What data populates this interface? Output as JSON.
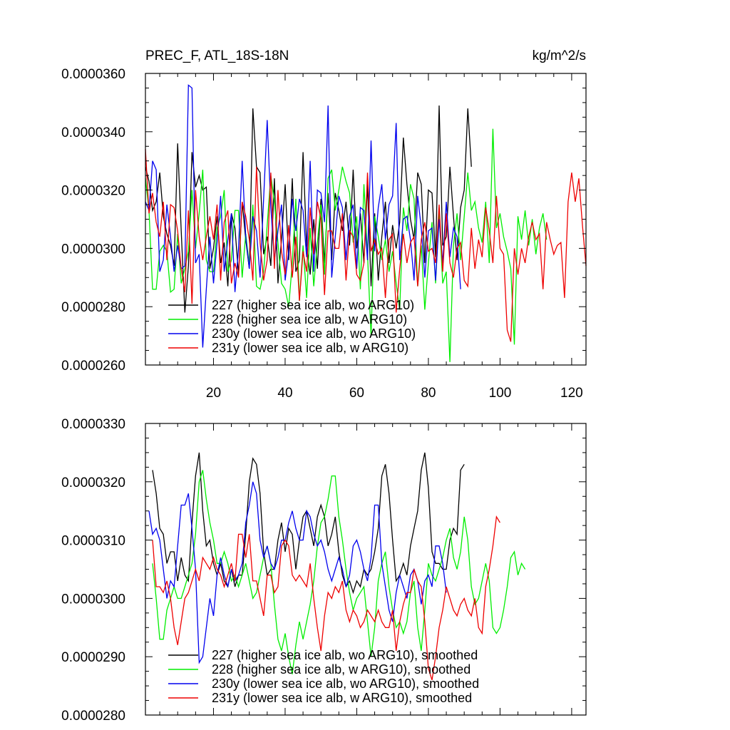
{
  "chart_data": [
    {
      "type": "line",
      "title": "PREC_F, ATL_18S-18N",
      "units": "kg/m^2/s",
      "xlim": [
        1,
        124
      ],
      "ylim": [
        2.6e-05,
        3.6e-05
      ],
      "x_ticks": [
        20,
        40,
        60,
        80,
        100,
        120
      ],
      "y_ticks": [
        "0.0000260",
        "0.0000280",
        "0.0000300",
        "0.0000320",
        "0.0000340",
        "0.0000360"
      ],
      "y_tick_values": [
        2.6e-05,
        2.8e-05,
        3e-05,
        3.2e-05,
        3.4e-05,
        3.6e-05
      ],
      "legend_position": "bottom-left",
      "series": [
        {
          "name": "227 (higher sea ice alb, wo ARG10)",
          "color": "#000000",
          "x_start": 1,
          "values": [
            3.28e-05,
            3.23e-05,
            3.13e-05,
            3.16e-05,
            3.26e-05,
            3.11e-05,
            3.05e-05,
            3.01e-05,
            2.94e-05,
            3.36e-05,
            3.06e-05,
            2.78e-05,
            2.94e-05,
            3.33e-05,
            3.21e-05,
            3.25e-05,
            3.2e-05,
            3.21e-05,
            2.93e-05,
            3e-05,
            3.11e-05,
            2.95e-05,
            3.02e-05,
            2.87e-05,
            3.12e-05,
            3.07e-05,
            2.91e-05,
            3.16e-05,
            3.03e-05,
            2.93e-05,
            3.48e-05,
            3.28e-05,
            3.26e-05,
            2.98e-05,
            3.04e-05,
            2.94e-05,
            3.24e-05,
            2.88e-05,
            3.03e-05,
            3.22e-05,
            2.96e-05,
            3.24e-05,
            2.92e-05,
            2.96e-05,
            3.33e-05,
            3.01e-05,
            2.91e-05,
            3.1e-05,
            2.93e-05,
            3.17e-05,
            2.95e-05,
            3.19e-05,
            2.96e-05,
            3.19e-05,
            3.13e-05,
            3.06e-05,
            3.16e-05,
            3.01e-05,
            3.27e-05,
            3e-05,
            3.12e-05,
            2.95e-05,
            3.22e-05,
            2.87e-05,
            3.12e-05,
            2.89e-05,
            3.04e-05,
            3.16e-05,
            2.95e-05,
            3.08e-05,
            3e-05,
            3.09e-05,
            3.38e-05,
            3.22e-05,
            3.1e-05,
            3.03e-05,
            3.26e-05,
            3.22e-05,
            2.95e-05,
            3.2e-05,
            3.19e-05,
            2.97e-05,
            3.49e-05,
            3.01e-05,
            3.04e-05,
            3.28e-05,
            3.11e-05,
            2.96e-05,
            3.14e-05,
            3.2e-05,
            3.48e-05,
            3.28e-05
          ]
        },
        {
          "name": "228 (higher sea ice alb, w ARG10)",
          "color": "#00ee00",
          "x_start": 1,
          "values": [
            3.24e-05,
            3.13e-05,
            2.86e-05,
            2.86e-05,
            2.99e-05,
            3.01e-05,
            2.99e-05,
            2.85e-05,
            2.86e-05,
            3.05e-05,
            2.88e-05,
            2.93e-05,
            2.99e-05,
            3.2e-05,
            3e-05,
            3.12e-05,
            3.27e-05,
            2.96e-05,
            2.92e-05,
            2.92e-05,
            3.07e-05,
            3.11e-05,
            3.2e-05,
            2.92e-05,
            2.96e-05,
            3.13e-05,
            3.13e-05,
            2.9e-05,
            3.05e-05,
            2.94e-05,
            3.15e-05,
            2.87e-05,
            2.86e-05,
            2.92e-05,
            3.08e-05,
            3.25e-05,
            3.16e-05,
            3.02e-05,
            2.88e-05,
            2.86e-05,
            2.8e-05,
            2.95e-05,
            3.17e-05,
            2.82e-05,
            3.01e-05,
            2.83e-05,
            3.07e-05,
            2.87e-05,
            3.02e-05,
            3.15e-05,
            2.91e-05,
            3.24e-05,
            3.27e-05,
            3.13e-05,
            3.2e-05,
            3.28e-05,
            3.23e-05,
            3.19e-05,
            3.02e-05,
            3.11e-05,
            2.86e-05,
            3.22e-05,
            2.98e-05,
            2.7e-05,
            3.11e-05,
            3.04e-05,
            2.96e-05,
            3.03e-05,
            2.92e-05,
            2.99e-05,
            2.88e-05,
            2.79e-05,
            3.14e-05,
            3.06e-05,
            3.22e-05,
            3.17e-05,
            2.87e-05,
            3.01e-05,
            2.79e-05,
            2.95e-05,
            3.09e-05,
            2.88e-05,
            3.12e-05,
            2.88e-05,
            2.92e-05,
            2.61e-05,
            3.01e-05,
            3.12e-05,
            2.96e-05,
            3.11e-05,
            3.26e-05,
            3.13e-05,
            3.16e-05,
            3.07e-05,
            3.02e-05,
            3.16e-05,
            2.95e-05,
            3.41e-05,
            3.07e-05,
            3.12e-05,
            3.04e-05,
            2.99e-05,
            2.93e-05,
            2.67e-05,
            3.11e-05,
            3.03e-05,
            3.13e-05,
            3.01e-05,
            3.1e-05,
            2.98e-05,
            3.07e-05,
            3.12e-05,
            3.03e-05
          ]
        },
        {
          "name": "230y (lower sea ice alb, wo ARG10)",
          "color": "#0000ee",
          "x_start": 1,
          "values": [
            3.16e-05,
            3.13e-05,
            3.3e-05,
            3.27e-05,
            2.92e-05,
            2.96e-05,
            3.15e-05,
            3.04e-05,
            2.92e-05,
            3.01e-05,
            2.93e-05,
            2.94e-05,
            3.56e-05,
            3.55e-05,
            2.95e-05,
            2.98e-05,
            2.66e-05,
            2.86e-05,
            3.04e-05,
            2.88e-05,
            3.02e-05,
            3.18e-05,
            2.92e-05,
            3.03e-05,
            3.12e-05,
            2.85e-05,
            3e-05,
            3.3e-05,
            3.04e-05,
            2.93e-05,
            3.11e-05,
            3.06e-05,
            2.9e-05,
            3.17e-05,
            3.44e-05,
            3.14e-05,
            2.96e-05,
            3.06e-05,
            3.15e-05,
            2.89e-05,
            2.99e-05,
            3.17e-05,
            3.06e-05,
            3.17e-05,
            3.13e-05,
            2.97e-05,
            3.3e-05,
            2.92e-05,
            3.2e-05,
            3.19e-05,
            3.09e-05,
            3.49e-05,
            2.9e-05,
            3.04e-05,
            3.18e-05,
            3.14e-05,
            2.96e-05,
            3.11e-05,
            3.15e-05,
            2.93e-05,
            3.14e-05,
            3.13e-05,
            2.96e-05,
            3.37e-05,
            2.99e-05,
            3.14e-05,
            3.22e-05,
            3.03e-05,
            3.15e-05,
            3.18e-05,
            3.43e-05,
            2.96e-05,
            3.1e-05,
            3.11e-05,
            3.03e-05,
            2.89e-05,
            3.18e-05,
            3.07e-05,
            2.9e-05,
            3.06e-05,
            3.07e-05,
            2.89e-05,
            3.1e-05,
            2.95e-05,
            3.16e-05,
            2.97e-05,
            3.07e-05,
            3.04e-05,
            2.86e-05
          ]
        },
        {
          "name": "231y (lower sea ice alb, w ARG10)",
          "color": "#ee0000",
          "x_start": 1,
          "values": [
            3.34e-05,
            3.12e-05,
            3.19e-05,
            3.09e-05,
            3.04e-05,
            3.16e-05,
            2.96e-05,
            3.15e-05,
            3.14e-05,
            3.06e-05,
            2.93e-05,
            2.85e-05,
            3.13e-05,
            2.81e-05,
            3.2e-05,
            3.04e-05,
            2.96e-05,
            3.04e-05,
            3.11e-05,
            3.03e-05,
            3.15e-05,
            2.89e-05,
            3.09e-05,
            3.13e-05,
            2.88e-05,
            2.95e-05,
            2.9e-05,
            3.16e-05,
            3.11e-05,
            3.03e-05,
            2.89e-05,
            3.28e-05,
            3.02e-05,
            2.89e-05,
            2.96e-05,
            3.26e-05,
            2.93e-05,
            3.2e-05,
            2.99e-05,
            2.91e-05,
            3.08e-05,
            2.9e-05,
            3.04e-05,
            2.82e-05,
            2.99e-05,
            2.92e-05,
            3.14e-05,
            2.98e-05,
            3.16e-05,
            3.1e-05,
            2.84e-05,
            3.06e-05,
            3.06e-05,
            3e-05,
            3e-05,
            3.12e-05,
            2.89e-05,
            3.06e-05,
            3.04e-05,
            2.91e-05,
            2.89e-05,
            2.95e-05,
            3.26e-05,
            2.99e-05,
            3.03e-05,
            2.98e-05,
            3e-05,
            2.83e-05,
            3.03e-05,
            3.05e-05,
            2.78e-05,
            2.93e-05,
            3.05e-05,
            2.95e-05,
            3.02e-05,
            3.04e-05,
            2.87e-05,
            3.03e-05,
            3.09e-05,
            2.99e-05,
            3e-05,
            2.95e-05,
            3.15e-05,
            2.92e-05,
            3.12e-05,
            2.95e-05,
            2.9e-05,
            3e-05,
            3.02e-05,
            2.89e-05,
            2.87e-05,
            3.07e-05,
            2.93e-05,
            3.03e-05,
            2.97e-05,
            3.14e-05,
            3.06e-05,
            2.95e-05,
            3.18e-05,
            3e-05,
            2.98e-05,
            2.72e-05,
            2.68e-05,
            3e-05,
            2.91e-05,
            3e-05,
            2.95e-05,
            3.04e-05,
            3.09e-05,
            3.03e-05,
            3.05e-05,
            2.86e-05,
            3.09e-05,
            3.03e-05,
            2.98e-05,
            3.01e-05,
            3.02e-05,
            2.83e-05,
            3.16e-05,
            3.26e-05,
            3.16e-05,
            3.24e-05,
            3.08e-05,
            2.94e-05
          ]
        }
      ]
    },
    {
      "type": "line",
      "xlim": [
        1,
        124
      ],
      "ylim": [
        2.8e-05,
        3.3e-05
      ],
      "x_tick_values": [
        20,
        40,
        60,
        80,
        100,
        120
      ],
      "y_ticks": [
        "0.0000280",
        "0.0000290",
        "0.0000300",
        "0.0000310",
        "0.0000320",
        "0.0000330"
      ],
      "y_tick_values": [
        2.8e-05,
        2.9e-05,
        3e-05,
        3.1e-05,
        3.2e-05,
        3.3e-05
      ],
      "legend_position": "bottom-left",
      "series": [
        {
          "name": "227 (higher sea ice alb, wo ARG10), smoothed",
          "color": "#000000",
          "x_start": 3,
          "values": [
            3.22e-05,
            3.18e-05,
            3.12e-05,
            3.11e-05,
            3.06e-05,
            3.08e-05,
            3.08e-05,
            3.03e-05,
            3.07e-05,
            3.04e-05,
            3.03e-05,
            3.13e-05,
            3.21e-05,
            3.25e-05,
            3.15e-05,
            3.09e-05,
            3.1e-05,
            3.06e-05,
            3.04e-05,
            3.06e-05,
            3.03e-05,
            3.02e-05,
            3.05e-05,
            3.02e-05,
            3.04e-05,
            3.04e-05,
            3.11e-05,
            3.2e-05,
            3.24e-05,
            3.23e-05,
            3.18e-05,
            3.08e-05,
            3.04e-05,
            3.05e-05,
            3.05e-05,
            3.1e-05,
            3.13e-05,
            3.08e-05,
            3.12e-05,
            3.11e-05,
            3.05e-05,
            3.1e-05,
            3.14e-05,
            3.15e-05,
            3.12e-05,
            3.09e-05,
            3.14e-05,
            3.16e-05,
            3.14e-05,
            3.09e-05,
            3.11e-05,
            3.14e-05,
            3.08e-05,
            3.04e-05,
            3.02e-05,
            3.03e-05,
            3.01e-05,
            3.03e-05,
            3.02e-05,
            3.05e-05,
            3.04e-05,
            3.05e-05,
            3.08e-05,
            3.12e-05,
            3.21e-05,
            3.23e-05,
            3.18e-05,
            3.1e-05,
            3.03e-05,
            3.04e-05,
            3.06e-05,
            3.04e-05,
            3.09e-05,
            3.12e-05,
            3.15e-05,
            3.22e-05,
            3.25e-05,
            3.19e-05,
            3.08e-05,
            3.06e-05,
            3.06e-05,
            3.05e-05,
            3.05e-05,
            3.1e-05,
            3.12e-05,
            3.11e-05,
            3.22e-05,
            3.23e-05
          ]
        },
        {
          "name": "228 (higher sea ice alb, w ARG10), smoothed",
          "color": "#00ee00",
          "x_start": 3,
          "values": [
            3.06e-05,
            3e-05,
            2.93e-05,
            2.93e-05,
            2.98e-05,
            3e-05,
            3.02e-05,
            3e-05,
            3e-05,
            3.02e-05,
            3.04e-05,
            3.06e-05,
            3.11e-05,
            3.2e-05,
            3.22e-05,
            3.17e-05,
            3.13e-05,
            3.1e-05,
            3.06e-05,
            3.06e-05,
            3.08e-05,
            3.06e-05,
            3.03e-05,
            3.04e-05,
            3.02e-05,
            3.04e-05,
            3.06e-05,
            3.03e-05,
            3e-05,
            3.01e-05,
            3.04e-05,
            3.07e-05,
            3.09e-05,
            3.06e-05,
            2.99e-05,
            2.93e-05,
            2.91e-05,
            2.94e-05,
            2.9e-05,
            2.87e-05,
            2.92e-05,
            2.96e-05,
            2.93e-05,
            2.96e-05,
            2.99e-05,
            3.03e-05,
            3.09e-05,
            3.13e-05,
            3.14e-05,
            3.17e-05,
            3.21e-05,
            3.21e-05,
            3.14e-05,
            3.1e-05,
            3.05e-05,
            3.01e-05,
            2.98e-05,
            3e-05,
            3.01e-05,
            3.02e-05,
            2.96e-05,
            2.9e-05,
            2.95e-05,
            3.03e-05,
            3.06e-05,
            3.08e-05,
            3.02e-05,
            2.98e-05,
            2.95e-05,
            2.96e-05,
            2.94e-05,
            2.96e-05,
            3.01e-05,
            3.03e-05,
            2.95e-05,
            2.91e-05,
            2.98e-05,
            3.06e-05,
            3.04e-05,
            3.03e-05,
            3.05e-05,
            3.07e-05,
            3.1e-05,
            3.12e-05,
            3.07e-05,
            3.05e-05,
            3.08e-05,
            3.14e-05,
            3.1e-05,
            3.02e-05,
            2.99e-05,
            3e-05,
            3.03e-05,
            3.06e-05,
            3.03e-05,
            2.95e-05,
            2.94e-05,
            2.95e-05,
            2.98e-05,
            3.02e-05,
            3.07e-05,
            3.08e-05,
            3.04e-05,
            3.06e-05,
            3.05e-05
          ]
        },
        {
          "name": "230y (lower sea ice alb, wo ARG10), smoothed",
          "color": "#0000ee",
          "x_start": 2,
          "values": [
            3.15e-05,
            3.11e-05,
            3.12e-05,
            3.1e-05,
            3.05e-05,
            3e-05,
            3.03e-05,
            3.02e-05,
            3.09e-05,
            3.16e-05,
            3.16e-05,
            3.18e-05,
            3.12e-05,
            3.05e-05,
            2.89e-05,
            2.9e-05,
            2.95e-05,
            3e-05,
            2.97e-05,
            3.04e-05,
            3.07e-05,
            3.04e-05,
            3.02e-05,
            3.05e-05,
            3.03e-05,
            3.04e-05,
            3.06e-05,
            3.13e-05,
            3.16e-05,
            3.2e-05,
            3.18e-05,
            3.1e-05,
            3.07e-05,
            3.09e-05,
            3.06e-05,
            3.05e-05,
            3.07e-05,
            3.1e-05,
            3.1e-05,
            3.13e-05,
            3.15e-05,
            3.12e-05,
            3.1e-05,
            3.1e-05,
            3.15e-05,
            3.14e-05,
            3.11e-05,
            3.09e-05,
            3.1e-05,
            3.08e-05,
            3.05e-05,
            3.03e-05,
            3.05e-05,
            3.07e-05,
            3.05e-05,
            3.02e-05,
            3.04e-05,
            3.09e-05,
            3.1e-05,
            3.08e-05,
            3.05e-05,
            3.03e-05,
            3.07e-05,
            3.16e-05,
            3.16e-05,
            3.06e-05,
            3.02e-05,
            2.98e-05,
            2.96e-05,
            3.01e-05,
            3.04e-05,
            3.02e-05,
            3e-05,
            3.04e-05,
            3.05e-05,
            3.03e-05,
            2.99e-05,
            3.03e-05,
            3.04e-05,
            3.02e-05,
            3.09e-05,
            3.09e-05,
            3.06e-05,
            3.01e-05
          ]
        },
        {
          "name": "231y (lower sea ice alb, w ARG10), smoothed",
          "color": "#ee0000",
          "x_start": 3,
          "values": [
            3.1e-05,
            3.02e-05,
            3.02e-05,
            3.01e-05,
            3.03e-05,
            3e-05,
            2.95e-05,
            2.92e-05,
            2.96e-05,
            3e-05,
            3.01e-05,
            3.03e-05,
            3.05e-05,
            3.03e-05,
            3.07e-05,
            3.06e-05,
            3.05e-05,
            3.07e-05,
            3.05e-05,
            3.04e-05,
            3.02e-05,
            3.04e-05,
            3.06e-05,
            3.03e-05,
            3.11e-05,
            3.11e-05,
            3.07e-05,
            3.11e-05,
            3.03e-05,
            3.03e-05,
            3e-05,
            2.97e-05,
            3.04e-05,
            3.04e-05,
            3.01e-05,
            3.02e-05,
            3.09e-05,
            3.1e-05,
            3.09e-05,
            3.04e-05,
            3.03e-05,
            3.04e-05,
            3.03e-05,
            3.02e-05,
            3.06e-05,
            3e-05,
            2.95e-05,
            2.91e-05,
            2.97e-05,
            3.01e-05,
            3e-05,
            3.02e-05,
            3.01e-05,
            3.03e-05,
            2.98e-05,
            2.96e-05,
            2.98e-05,
            2.97e-05,
            2.95e-05,
            2.96e-05,
            2.98e-05,
            2.97e-05,
            2.96e-05,
            2.98e-05,
            2.96e-05,
            2.95e-05,
            2.95e-05,
            2.98e-05,
            2.91e-05,
            2.96e-05,
            2.99e-05,
            3.01e-05,
            3.01e-05,
            3.05e-05,
            3.03e-05,
            3.02e-05,
            2.96e-05,
            2.88e-05,
            2.86e-05,
            2.9e-05,
            2.95e-05,
            2.98e-05,
            3.02e-05,
            3e-05,
            2.98e-05,
            2.97e-05,
            2.99e-05,
            3e-05,
            2.98e-05,
            2.97e-05,
            3e-05,
            2.95e-05,
            2.94e-05,
            3.02e-05,
            3.05e-05,
            3.09e-05,
            3.14e-05,
            3.13e-05
          ]
        }
      ]
    }
  ]
}
